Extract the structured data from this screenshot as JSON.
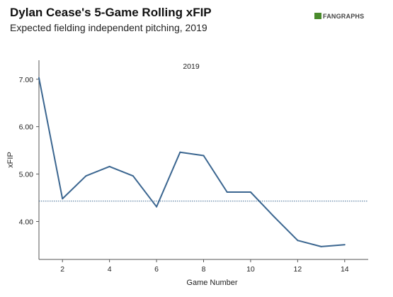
{
  "header": {
    "title": "Dylan Cease's 5-Game Rolling xFIP",
    "subtitle": "Expected fielding independent pitching, 2019",
    "logo_text": "FANGRAPHS"
  },
  "chart_data": {
    "type": "line",
    "annotation": "2019",
    "xlabel": "Game Number",
    "ylabel": "xFIP",
    "xlim": [
      1,
      15
    ],
    "ylim": [
      3.2,
      7.4
    ],
    "x_ticks": [
      2,
      4,
      6,
      8,
      10,
      12,
      14
    ],
    "x_tick_labels": [
      "2",
      "4",
      "6",
      "8",
      "10",
      "12",
      "14"
    ],
    "y_ticks": [
      4.0,
      5.0,
      6.0,
      7.0
    ],
    "y_tick_labels": [
      "4.00",
      "5.00",
      "6.00",
      "7.00"
    ],
    "reference_line": 4.43,
    "series": [
      {
        "color": "#3b6690",
        "x": [
          1,
          2,
          3,
          4,
          5,
          6,
          7,
          8,
          9,
          10,
          11,
          12,
          13,
          14
        ],
        "values": [
          7.03,
          4.48,
          4.96,
          5.16,
          4.96,
          4.31,
          5.46,
          5.39,
          4.62,
          4.62,
          4.1,
          3.6,
          3.47,
          3.51
        ]
      }
    ],
    "grid": false,
    "legend": "none"
  }
}
